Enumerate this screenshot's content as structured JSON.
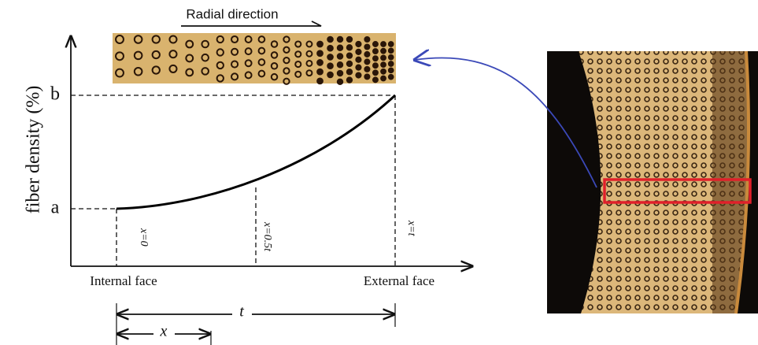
{
  "title": "Radial direction",
  "y_axis": {
    "label": "fiber density (%)",
    "levels": [
      "a",
      "b"
    ]
  },
  "positions": [
    "x=0",
    "x=0.5t",
    "x=t"
  ],
  "faces": [
    "Internal face",
    "External face"
  ],
  "dimensions": [
    "t",
    "x"
  ]
}
